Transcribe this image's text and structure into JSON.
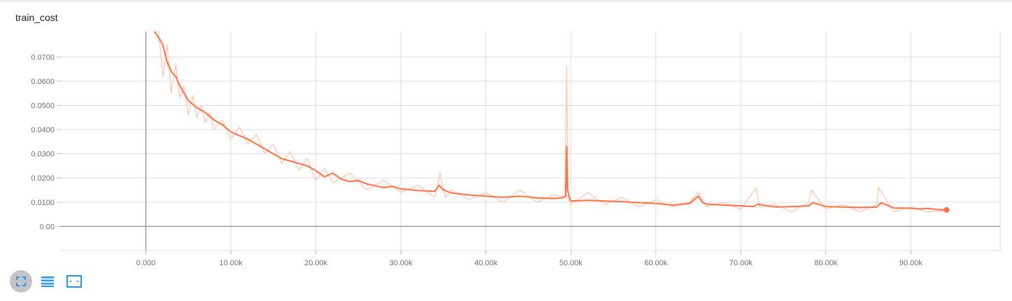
{
  "chart_title": "train_cost",
  "toolbar": {
    "icons": [
      "expand-chart-icon",
      "toggle-log-scale-icon",
      "fit-domain-icon"
    ],
    "accent_color": "#2196f3"
  },
  "colors": {
    "smoothed_line": "#ff7043",
    "raw_line": "#ffccbc",
    "grid": "#dddddd",
    "axis": "#9e9e9e"
  },
  "chart_data": {
    "type": "line",
    "title": "train_cost",
    "xlabel": "",
    "ylabel": "",
    "xlim": [
      -10000,
      100500
    ],
    "ylim": [
      -0.01,
      0.0805
    ],
    "grid": true,
    "x_ticks": [
      0,
      10000,
      20000,
      30000,
      40000,
      50000,
      60000,
      70000,
      80000,
      90000
    ],
    "x_tick_labels": [
      "0.000",
      "10.00k",
      "20.00k",
      "30.00k",
      "40.00k",
      "50.00k",
      "60.00k",
      "70.00k",
      "80.00k",
      "90.00k"
    ],
    "y_ticks": [
      0,
      0.01,
      0.02,
      0.03,
      0.04,
      0.05,
      0.06,
      0.07
    ],
    "y_tick_labels": [
      "0.00",
      "0.0100",
      "0.0200",
      "0.0300",
      "0.0400",
      "0.0500",
      "0.0600",
      "0.0700"
    ],
    "series": [
      {
        "key": "smoothed",
        "x": [
          1000,
          1500,
          2000,
          2500,
          3000,
          3500,
          4000,
          4500,
          5000,
          6000,
          7000,
          8000,
          9000,
          10000,
          11000,
          12000,
          13000,
          14000,
          15000,
          16000,
          17000,
          18000,
          19000,
          20000,
          21000,
          22000,
          23000,
          24000,
          25000,
          26000,
          27000,
          28000,
          29000,
          30000,
          32000,
          34000,
          34500,
          35000,
          36000,
          38000,
          40000,
          42000,
          44000,
          46000,
          48000,
          49000,
          49400,
          49500,
          49600,
          49800,
          50000,
          52000,
          54000,
          56000,
          58000,
          60000,
          62000,
          64000,
          65000,
          65500,
          66000,
          68000,
          70000,
          71500,
          72000,
          74000,
          76000,
          78000,
          78500,
          80000,
          82000,
          84000,
          86000,
          86500,
          88000,
          90000,
          91000,
          92000,
          93000,
          94200
        ],
        "y": [
          0.0805,
          0.078,
          0.075,
          0.068,
          0.064,
          0.062,
          0.058,
          0.055,
          0.052,
          0.049,
          0.047,
          0.044,
          0.042,
          0.039,
          0.0375,
          0.036,
          0.034,
          0.032,
          0.03,
          0.028,
          0.027,
          0.026,
          0.025,
          0.023,
          0.0205,
          0.022,
          0.0195,
          0.0185,
          0.019,
          0.0175,
          0.0168,
          0.016,
          0.0165,
          0.0155,
          0.0148,
          0.0145,
          0.017,
          0.015,
          0.0138,
          0.013,
          0.0125,
          0.012,
          0.0125,
          0.0118,
          0.0115,
          0.0118,
          0.0125,
          0.033,
          0.015,
          0.0125,
          0.0105,
          0.0108,
          0.0105,
          0.0102,
          0.0098,
          0.0095,
          0.0088,
          0.0095,
          0.0125,
          0.0098,
          0.0092,
          0.0088,
          0.0085,
          0.0082,
          0.0092,
          0.008,
          0.0082,
          0.0085,
          0.0098,
          0.0082,
          0.008,
          0.0078,
          0.008,
          0.0098,
          0.0076,
          0.0075,
          0.0072,
          0.0074,
          0.007,
          0.0068
        ]
      },
      {
        "key": "raw",
        "x": [
          1000,
          1500,
          2000,
          2500,
          3000,
          3500,
          4000,
          4500,
          5000,
          5500,
          6000,
          6500,
          7000,
          7500,
          8000,
          9000,
          10000,
          11000,
          12000,
          13000,
          14000,
          15000,
          16000,
          17000,
          18000,
          19000,
          20000,
          21000,
          22000,
          24000,
          26000,
          28000,
          30000,
          32000,
          34000,
          34600,
          35200,
          36000,
          38000,
          40000,
          42000,
          44000,
          46000,
          48000,
          49300,
          49500,
          49700,
          50000,
          52000,
          54000,
          56000,
          58000,
          60000,
          62000,
          64000,
          65000,
          66000,
          68000,
          70000,
          71800,
          72200,
          74000,
          76000,
          78000,
          78300,
          80000,
          82000,
          84000,
          86000,
          86200,
          88000,
          90000,
          92000,
          94200
        ],
        "y": [
          0.0805,
          0.0805,
          0.062,
          0.075,
          0.055,
          0.067,
          0.053,
          0.058,
          0.046,
          0.054,
          0.045,
          0.05,
          0.043,
          0.047,
          0.04,
          0.044,
          0.036,
          0.041,
          0.034,
          0.038,
          0.03,
          0.034,
          0.026,
          0.031,
          0.023,
          0.028,
          0.019,
          0.024,
          0.018,
          0.022,
          0.015,
          0.019,
          0.014,
          0.017,
          0.012,
          0.022,
          0.012,
          0.015,
          0.011,
          0.014,
          0.01,
          0.015,
          0.01,
          0.013,
          0.012,
          0.066,
          0.011,
          0.009,
          0.014,
          0.009,
          0.012,
          0.008,
          0.011,
          0.008,
          0.01,
          0.014,
          0.008,
          0.01,
          0.007,
          0.016,
          0.008,
          0.009,
          0.006,
          0.01,
          0.015,
          0.007,
          0.009,
          0.006,
          0.009,
          0.016,
          0.006,
          0.008,
          0.006,
          0.0065
        ]
      }
    ]
  }
}
